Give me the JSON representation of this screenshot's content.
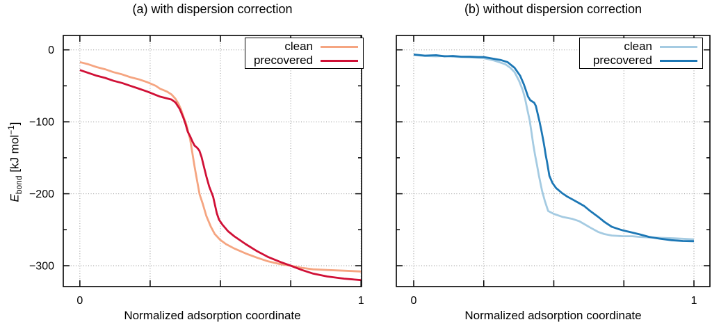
{
  "figure": {
    "background": "#ffffff",
    "axis_color": "#000000",
    "grid_color": "#909090"
  },
  "ylabel_parts": {
    "variable": "E",
    "subscript": "bond",
    "unit_prefix": " [kJ mol",
    "superscript": "−1",
    "unit_suffix": "]"
  },
  "chart_data": [
    {
      "type": "line",
      "title": "(a) with dispersion correction",
      "xlabel": "Normalized adsorption coordinate",
      "ylabel": "E_bond [kJ mol^-1]",
      "xlim": [
        -0.059,
        1.002
      ],
      "ylim": [
        -329,
        20
      ],
      "grid": true,
      "legend_position": "top-right",
      "x_major_ticks": [
        0,
        0.25,
        0.5,
        0.75,
        1
      ],
      "x_tick_labels": [
        {
          "v": 0,
          "label": "0"
        },
        {
          "v": 1,
          "label": "1"
        }
      ],
      "y_major_ticks": [
        0,
        -100,
        -200,
        -300
      ],
      "y_minor_ticks": [
        -50,
        -150,
        -250
      ],
      "y_tick_labels": [
        {
          "v": 0,
          "label": "0"
        },
        {
          "v": -100,
          "label": "−100"
        },
        {
          "v": -200,
          "label": "−200"
        },
        {
          "v": -300,
          "label": "−300"
        }
      ],
      "show_y_tick_labels": true,
      "series": [
        {
          "name": "clean",
          "color": "#f5a581",
          "points": [
            [
              0.0,
              -17
            ],
            [
              0.03,
              -20
            ],
            [
              0.06,
              -24
            ],
            [
              0.09,
              -27
            ],
            [
              0.12,
              -31
            ],
            [
              0.15,
              -34
            ],
            [
              0.18,
              -38
            ],
            [
              0.21,
              -41
            ],
            [
              0.24,
              -45
            ],
            [
              0.27,
              -50
            ],
            [
              0.285,
              -54
            ],
            [
              0.31,
              -58
            ],
            [
              0.326,
              -62
            ],
            [
              0.34,
              -68
            ],
            [
              0.351,
              -75
            ],
            [
              0.36,
              -83
            ],
            [
              0.367,
              -91
            ],
            [
              0.379,
              -104
            ],
            [
              0.386,
              -115
            ],
            [
              0.392,
              -124
            ],
            [
              0.4,
              -143
            ],
            [
              0.408,
              -162
            ],
            [
              0.417,
              -182
            ],
            [
              0.426,
              -201
            ],
            [
              0.437,
              -214
            ],
            [
              0.45,
              -231
            ],
            [
              0.466,
              -246
            ],
            [
              0.48,
              -256
            ],
            [
              0.499,
              -264
            ],
            [
              0.52,
              -270
            ],
            [
              0.549,
              -276
            ],
            [
              0.59,
              -283
            ],
            [
              0.631,
              -289
            ],
            [
              0.67,
              -294
            ],
            [
              0.714,
              -298
            ],
            [
              0.75,
              -300
            ],
            [
              0.79,
              -303
            ],
            [
              0.829,
              -305
            ],
            [
              0.88,
              -306
            ],
            [
              0.94,
              -307
            ],
            [
              1.0,
              -308
            ]
          ]
        },
        {
          "name": "precovered",
          "color": "#d01036",
          "points": [
            [
              0.0,
              -28
            ],
            [
              0.03,
              -32
            ],
            [
              0.06,
              -36
            ],
            [
              0.09,
              -39
            ],
            [
              0.12,
              -43
            ],
            [
              0.15,
              -46
            ],
            [
              0.18,
              -50
            ],
            [
              0.21,
              -54
            ],
            [
              0.24,
              -58
            ],
            [
              0.285,
              -65
            ],
            [
              0.326,
              -69
            ],
            [
              0.34,
              -73
            ],
            [
              0.355,
              -82
            ],
            [
              0.367,
              -93
            ],
            [
              0.375,
              -102
            ],
            [
              0.384,
              -114
            ],
            [
              0.392,
              -120
            ],
            [
              0.4,
              -127
            ],
            [
              0.408,
              -133
            ],
            [
              0.417,
              -136
            ],
            [
              0.425,
              -140
            ],
            [
              0.433,
              -149
            ],
            [
              0.441,
              -162
            ],
            [
              0.45,
              -176
            ],
            [
              0.46,
              -190
            ],
            [
              0.474,
              -204
            ],
            [
              0.487,
              -227
            ],
            [
              0.495,
              -236
            ],
            [
              0.507,
              -243
            ],
            [
              0.527,
              -252
            ],
            [
              0.549,
              -259
            ],
            [
              0.59,
              -270
            ],
            [
              0.631,
              -280
            ],
            [
              0.67,
              -288
            ],
            [
              0.714,
              -295
            ],
            [
              0.75,
              -300
            ],
            [
              0.79,
              -306
            ],
            [
              0.83,
              -311
            ],
            [
              0.88,
              -315
            ],
            [
              0.94,
              -318
            ],
            [
              1.0,
              -320
            ]
          ]
        }
      ]
    },
    {
      "type": "line",
      "title": "(b) without dispersion correction",
      "xlabel": "Normalized adsorption coordinate",
      "ylabel": "",
      "xlim": [
        -0.062,
        1.057
      ],
      "ylim": [
        -329,
        20
      ],
      "grid": true,
      "legend_position": "top-right",
      "x_major_ticks": [
        0,
        0.25,
        0.5,
        0.75,
        1
      ],
      "x_tick_labels": [
        {
          "v": 0,
          "label": "0"
        },
        {
          "v": 1,
          "label": "1"
        }
      ],
      "y_major_ticks": [
        0,
        -100,
        -200,
        -300
      ],
      "y_minor_ticks": [
        -50,
        -150,
        -250
      ],
      "y_tick_labels": [],
      "show_y_tick_labels": false,
      "series": [
        {
          "name": "clean",
          "color": "#a5cbe2",
          "points": [
            [
              0.0,
              -7
            ],
            [
              0.04,
              -8.5
            ],
            [
              0.08,
              -9
            ],
            [
              0.11,
              -8.5
            ],
            [
              0.14,
              -9.5
            ],
            [
              0.17,
              -10
            ],
            [
              0.2,
              -10.5
            ],
            [
              0.23,
              -11
            ],
            [
              0.25,
              -11.5
            ],
            [
              0.28,
              -14
            ],
            [
              0.305,
              -17
            ],
            [
              0.327,
              -20
            ],
            [
              0.345,
              -25
            ],
            [
              0.36,
              -31
            ],
            [
              0.376,
              -43
            ],
            [
              0.389,
              -56
            ],
            [
              0.397,
              -67
            ],
            [
              0.405,
              -82
            ],
            [
              0.414,
              -98
            ],
            [
              0.42,
              -114
            ],
            [
              0.426,
              -130
            ],
            [
              0.433,
              -146
            ],
            [
              0.44,
              -160
            ],
            [
              0.447,
              -175
            ],
            [
              0.458,
              -196
            ],
            [
              0.468,
              -210
            ],
            [
              0.48,
              -224
            ],
            [
              0.5,
              -228
            ],
            [
              0.53,
              -232
            ],
            [
              0.567,
              -235
            ],
            [
              0.59,
              -238
            ],
            [
              0.608,
              -242
            ],
            [
              0.63,
              -247
            ],
            [
              0.658,
              -253
            ],
            [
              0.68,
              -256
            ],
            [
              0.707,
              -258
            ],
            [
              0.747,
              -259
            ],
            [
              0.78,
              -259
            ],
            [
              0.807,
              -260
            ],
            [
              0.86,
              -261
            ],
            [
              0.93,
              -262
            ],
            [
              1.0,
              -263.5
            ]
          ]
        },
        {
          "name": "precovered",
          "color": "#1c77b5",
          "points": [
            [
              0.0,
              -6.5
            ],
            [
              0.04,
              -8
            ],
            [
              0.08,
              -7.5
            ],
            [
              0.11,
              -9
            ],
            [
              0.14,
              -8.5
            ],
            [
              0.17,
              -9.5
            ],
            [
              0.2,
              -9.5
            ],
            [
              0.23,
              -10
            ],
            [
              0.25,
              -10
            ],
            [
              0.28,
              -12
            ],
            [
              0.31,
              -14
            ],
            [
              0.335,
              -17
            ],
            [
              0.36,
              -25
            ],
            [
              0.38,
              -36
            ],
            [
              0.393,
              -48
            ],
            [
              0.401,
              -57
            ],
            [
              0.408,
              -65
            ],
            [
              0.416,
              -70
            ],
            [
              0.424,
              -72
            ],
            [
              0.43,
              -73.5
            ],
            [
              0.436,
              -78
            ],
            [
              0.442,
              -88
            ],
            [
              0.449,
              -100
            ],
            [
              0.455,
              -111
            ],
            [
              0.463,
              -127
            ],
            [
              0.467,
              -136
            ],
            [
              0.471,
              -146
            ],
            [
              0.476,
              -156
            ],
            [
              0.484,
              -175
            ],
            [
              0.495,
              -185
            ],
            [
              0.508,
              -192
            ],
            [
              0.52,
              -196
            ],
            [
              0.529,
              -199
            ],
            [
              0.548,
              -204
            ],
            [
              0.567,
              -208
            ],
            [
              0.59,
              -213
            ],
            [
              0.608,
              -217
            ],
            [
              0.63,
              -224
            ],
            [
              0.658,
              -232
            ],
            [
              0.68,
              -239
            ],
            [
              0.707,
              -246
            ],
            [
              0.73,
              -249
            ],
            [
              0.747,
              -251
            ],
            [
              0.78,
              -254
            ],
            [
              0.807,
              -256.5
            ],
            [
              0.84,
              -260
            ],
            [
              0.88,
              -262.5
            ],
            [
              0.92,
              -264.5
            ],
            [
              0.96,
              -265.7
            ],
            [
              1.0,
              -266
            ]
          ]
        }
      ]
    }
  ]
}
